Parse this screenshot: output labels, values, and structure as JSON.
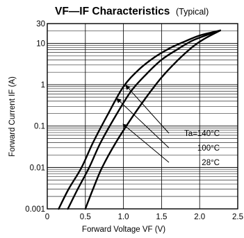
{
  "chart_data": {
    "type": "line",
    "title": "VF—IF  Characteristics",
    "subtitle": "(Typical)",
    "xlabel": "Forward Voltage  VF (V)",
    "ylabel": "Forward Current  IF (A)",
    "xlim": [
      0,
      2.5
    ],
    "ylim": [
      0.001,
      30
    ],
    "yscale": "log",
    "grid": true,
    "x_ticks": [
      "0",
      "0.5",
      "1.0",
      "1.5",
      "2.0",
      "2.5"
    ],
    "y_ticks": [
      "0.001",
      "0.01",
      "0.1",
      "1",
      "10",
      "30"
    ],
    "series": [
      {
        "name": "Ta=140°C",
        "points": [
          [
            0.15,
            0.001
          ],
          [
            0.28,
            0.003
          ],
          [
            0.45,
            0.01
          ],
          [
            0.6,
            0.04
          ],
          [
            0.8,
            0.2
          ],
          [
            1.0,
            0.9
          ],
          [
            1.2,
            2.3
          ],
          [
            1.4,
            4.5
          ],
          [
            1.6,
            7.5
          ],
          [
            1.8,
            11
          ],
          [
            2.0,
            15.5
          ],
          [
            2.27,
            20.5
          ]
        ]
      },
      {
        "name": "100°C",
        "points": [
          [
            0.27,
            0.001
          ],
          [
            0.4,
            0.003
          ],
          [
            0.55,
            0.01
          ],
          [
            0.7,
            0.04
          ],
          [
            0.9,
            0.18
          ],
          [
            1.1,
            0.7
          ],
          [
            1.3,
            1.8
          ],
          [
            1.5,
            4.0
          ],
          [
            1.7,
            7.0
          ],
          [
            1.9,
            11.5
          ],
          [
            2.1,
            16
          ],
          [
            2.27,
            20.5
          ]
        ]
      },
      {
        "name": "28°C",
        "points": [
          [
            0.5,
            0.001
          ],
          [
            0.6,
            0.003
          ],
          [
            0.72,
            0.01
          ],
          [
            0.9,
            0.04
          ],
          [
            1.1,
            0.15
          ],
          [
            1.3,
            0.5
          ],
          [
            1.5,
            1.5
          ],
          [
            1.7,
            3.7
          ],
          [
            1.9,
            8
          ],
          [
            2.05,
            12.5
          ],
          [
            2.27,
            20.5
          ]
        ]
      }
    ],
    "annotations": [
      "Ta=140°C",
      "100°C",
      "28°C"
    ]
  }
}
